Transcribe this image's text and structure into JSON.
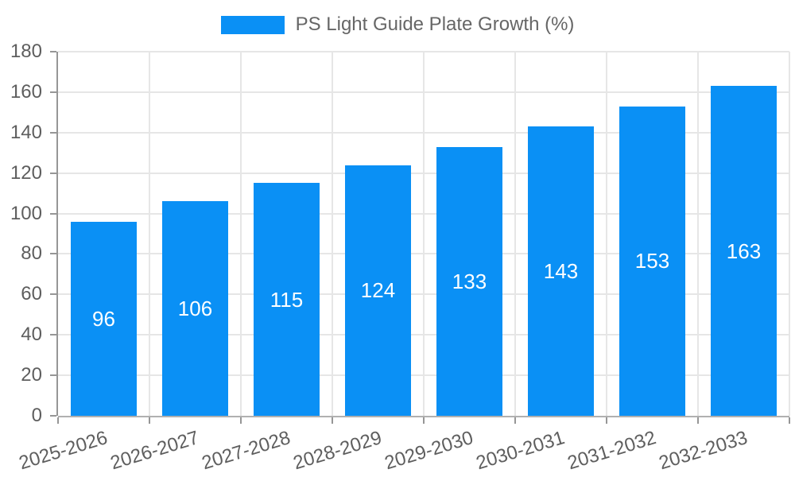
{
  "legend": {
    "label": "PS Light Guide Plate Growth (%)"
  },
  "chart_data": {
    "type": "bar",
    "title": "PS Light Guide Plate Growth (%)",
    "categories": [
      "2025-2026",
      "2026-2027",
      "2027-2028",
      "2028-2029",
      "2029-2030",
      "2030-2031",
      "2031-2032",
      "2032-2033"
    ],
    "series": [
      {
        "name": "PS Light Guide Plate Growth (%)",
        "values": [
          96,
          106,
          115,
          124,
          133,
          143,
          153,
          163
        ]
      }
    ],
    "values": [
      96,
      106,
      115,
      124,
      133,
      143,
      153,
      163
    ],
    "value_labels": "inside-center",
    "xlabel": "",
    "ylabel": "",
    "ylim": [
      0,
      180
    ],
    "yticks": [
      0,
      20,
      40,
      60,
      80,
      100,
      120,
      140,
      160,
      180
    ],
    "grid": true,
    "legend_position": "top",
    "x_label_rotation_deg": -17,
    "colors": {
      "bar": "#0a90f5",
      "bar_label_text": "#ffffff",
      "axis_line": "#969696",
      "gridline": "#e6e6e6",
      "axis_text": "#5e5e5e",
      "legend_text": "#666666",
      "background": "#ffffff"
    }
  }
}
